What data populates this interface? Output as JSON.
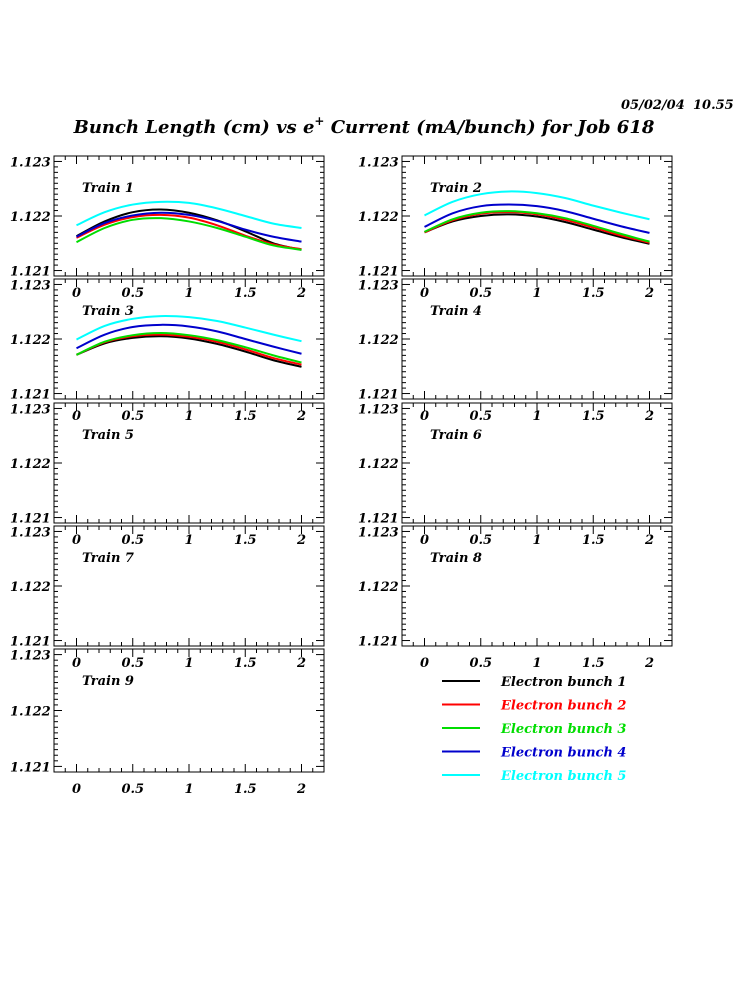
{
  "header": {
    "date": "05/02/04",
    "time": "10.55",
    "title_pre": "Bunch Length (cm) vs e",
    "title_sup": "+",
    "title_post": " Current (mA/bunch) for Job 618"
  },
  "chart_data": {
    "type": "line",
    "xlim": [
      -0.2,
      2.2
    ],
    "ylim": [
      1.1209,
      1.1231
    ],
    "xticks": [
      0,
      0.5,
      1,
      1.5,
      2
    ],
    "xtick_labels": [
      "0",
      "0.5",
      "1",
      "1.5",
      "2"
    ],
    "yticks": [
      1.121,
      1.122,
      1.123
    ],
    "ytick_labels": [
      "1.121",
      "1.122",
      "1.123"
    ],
    "x": [
      0,
      0.25,
      0.5,
      0.75,
      1.0,
      1.25,
      1.5,
      1.75,
      2.0
    ],
    "legend": {
      "placement": "bottom-right",
      "entries": [
        {
          "label": "Electron bunch 1",
          "color": "#000000"
        },
        {
          "label": "Electron bunch 2",
          "color": "#ff0000"
        },
        {
          "label": "Electron bunch 3",
          "color": "#00dd00"
        },
        {
          "label": "Electron bunch 4",
          "color": "#0000cc"
        },
        {
          "label": "Electron bunch 5",
          "color": "#00ffff"
        }
      ]
    },
    "panels": [
      {
        "label": "Train 1",
        "series": [
          {
            "name": "Electron bunch 1",
            "color": "#000000",
            "values": [
              1.12163,
              1.1219,
              1.12207,
              1.12212,
              1.12206,
              1.12192,
              1.12172,
              1.1215,
              1.12138
            ]
          },
          {
            "name": "Electron bunch 2",
            "color": "#ff0000",
            "values": [
              1.1216,
              1.12184,
              1.12198,
              1.12202,
              1.12197,
              1.12183,
              1.12164,
              1.12148,
              1.12139
            ]
          },
          {
            "name": "Electron bunch 3",
            "color": "#00dd00",
            "values": [
              1.12152,
              1.12178,
              1.12193,
              1.12196,
              1.1219,
              1.12178,
              1.12162,
              1.12146,
              1.12138
            ]
          },
          {
            "name": "Electron bunch 4",
            "color": "#0000cc",
            "values": [
              1.12162,
              1.12187,
              1.12201,
              1.12206,
              1.12202,
              1.12191,
              1.12175,
              1.12162,
              1.12153
            ]
          },
          {
            "name": "Electron bunch 5",
            "color": "#00ffff",
            "values": [
              1.12183,
              1.12207,
              1.12221,
              1.12226,
              1.12224,
              1.12214,
              1.122,
              1.12186,
              1.12178
            ]
          }
        ]
      },
      {
        "label": "Train 2",
        "series": [
          {
            "name": "Electron bunch 1",
            "color": "#000000",
            "values": [
              1.1217,
              1.1219,
              1.122,
              1.12203,
              1.12199,
              1.12189,
              1.12175,
              1.12161,
              1.12149
            ]
          },
          {
            "name": "Electron bunch 2",
            "color": "#ff0000",
            "values": [
              1.1217,
              1.12192,
              1.12204,
              1.12207,
              1.12203,
              1.12193,
              1.12179,
              1.12164,
              1.12151
            ]
          },
          {
            "name": "Electron bunch 3",
            "color": "#00dd00",
            "values": [
              1.12171,
              1.12194,
              1.12206,
              1.12209,
              1.12205,
              1.12196,
              1.12182,
              1.12167,
              1.12153
            ]
          },
          {
            "name": "Electron bunch 4",
            "color": "#0000cc",
            "values": [
              1.1218,
              1.12205,
              1.12218,
              1.12221,
              1.12218,
              1.12209,
              1.12195,
              1.12181,
              1.12169
            ]
          },
          {
            "name": "Electron bunch 5",
            "color": "#00ffff",
            "values": [
              1.12201,
              1.12226,
              1.1224,
              1.12245,
              1.12242,
              1.12233,
              1.12219,
              1.12206,
              1.12194
            ]
          }
        ]
      },
      {
        "label": "Train 3",
        "series": [
          {
            "name": "Electron bunch 1",
            "color": "#000000",
            "values": [
              1.12171,
              1.12192,
              1.12202,
              1.12205,
              1.12201,
              1.12191,
              1.12177,
              1.12161,
              1.12149
            ]
          },
          {
            "name": "Electron bunch 2",
            "color": "#ff0000",
            "values": [
              1.12171,
              1.12194,
              1.12205,
              1.12208,
              1.12204,
              1.12195,
              1.12181,
              1.12165,
              1.12153
            ]
          },
          {
            "name": "Electron bunch 3",
            "color": "#00dd00",
            "values": [
              1.12171,
              1.12195,
              1.12207,
              1.12211,
              1.12207,
              1.12198,
              1.12185,
              1.1217,
              1.12157
            ]
          },
          {
            "name": "Electron bunch 4",
            "color": "#0000cc",
            "values": [
              1.12183,
              1.12208,
              1.12222,
              1.12226,
              1.12223,
              1.12214,
              1.122,
              1.12186,
              1.12173
            ]
          },
          {
            "name": "Electron bunch 5",
            "color": "#00ffff",
            "values": [
              1.12199,
              1.12224,
              1.12237,
              1.12242,
              1.1224,
              1.12233,
              1.12221,
              1.12208,
              1.12196
            ]
          }
        ]
      },
      {
        "label": "Train 4",
        "series": []
      },
      {
        "label": "Train 5",
        "series": []
      },
      {
        "label": "Train 6",
        "series": []
      },
      {
        "label": "Train 7",
        "series": []
      },
      {
        "label": "Train 8",
        "series": []
      },
      {
        "label": "Train 9",
        "series": []
      }
    ]
  }
}
